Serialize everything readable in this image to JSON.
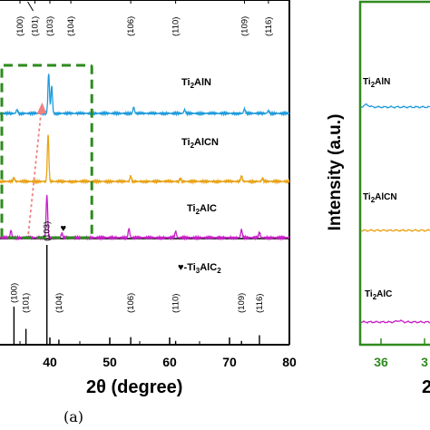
{
  "chart_data": [
    {
      "type": "line",
      "panel_caption": "(a)",
      "xlabel": "2θ (degree)",
      "xlim": [
        30,
        80
      ],
      "xticks": [
        40,
        50,
        60,
        70,
        80
      ],
      "series": [
        {
          "name": "Ti2AlN",
          "label_main": "Ti",
          "label_sub": "2",
          "label_rest": "AlN",
          "color": "#1f9bdc",
          "peaks": [
            {
              "x": 34.5,
              "h": 4
            },
            {
              "x": 39.8,
              "h": 44
            },
            {
              "x": 40.3,
              "h": 30
            },
            {
              "x": 54.0,
              "h": 7
            },
            {
              "x": 62.5,
              "h": 4
            },
            {
              "x": 72.5,
              "h": 5
            },
            {
              "x": 76.5,
              "h": 3
            }
          ]
        },
        {
          "name": "Ti2AlCN",
          "label_main": "Ti",
          "label_sub": "2",
          "label_rest": "AlCN",
          "color": "#e8a317",
          "peaks": [
            {
              "x": 34.0,
              "h": 4
            },
            {
              "x": 39.7,
              "h": 52
            },
            {
              "x": 53.5,
              "h": 6
            },
            {
              "x": 61.8,
              "h": 3
            },
            {
              "x": 72.0,
              "h": 6
            },
            {
              "x": 75.5,
              "h": 3
            }
          ]
        },
        {
          "name": "Ti2AlC",
          "label_main": "Ti",
          "label_sub": "2",
          "label_rest": "AlC",
          "color": "#c81ec8",
          "peaks": [
            {
              "x": 33.5,
              "h": 8
            },
            {
              "x": 39.5,
              "h": 47
            },
            {
              "x": 42.0,
              "h": 5
            },
            {
              "x": 53.2,
              "h": 10
            },
            {
              "x": 61.0,
              "h": 7
            },
            {
              "x": 72.0,
              "h": 9
            },
            {
              "x": 75.0,
              "h": 6
            }
          ]
        }
      ],
      "reference": {
        "label_prefix": "♥-Ti",
        "label_sub1": "3",
        "label_mid": "AlC",
        "label_sub2": "2",
        "sticks": [
          {
            "x": 34.0,
            "h": 60,
            "hkl": "(100)"
          },
          {
            "x": 36.0,
            "h": 25,
            "hkl": "(101)"
          },
          {
            "x": 39.5,
            "h": 200,
            "hkl": "(103)"
          },
          {
            "x": 41.5,
            "h": 8,
            "hkl": "(104)"
          },
          {
            "x": 53.5,
            "h": 12,
            "hkl": "(106)"
          },
          {
            "x": 61.0,
            "h": 6,
            "hkl": "(110)"
          },
          {
            "x": 72.0,
            "h": 6,
            "hkl": "(109)"
          },
          {
            "x": 75.0,
            "h": 15,
            "hkl": "(116)"
          }
        ]
      },
      "top_hkl_labels": [
        {
          "x": 35.0,
          "hkl": "(100)"
        },
        {
          "x": 37.5,
          "hkl": "(101)"
        },
        {
          "x": 40.0,
          "hkl": "(103)"
        },
        {
          "x": 43.5,
          "hkl": "(104)"
        },
        {
          "x": 53.5,
          "hkl": "(106)"
        },
        {
          "x": 61.0,
          "hkl": "(110)"
        },
        {
          "x": 72.5,
          "hkl": "(109)"
        },
        {
          "x": 76.5,
          "hkl": "(116)"
        }
      ],
      "marker_symbol": "♥",
      "marker_x": 42.5,
      "zoom_box": {
        "x0": 30,
        "x1": 47,
        "color": "#2e8b1e"
      },
      "shift_arrow_color": "#f08080"
    },
    {
      "type": "line",
      "ylabel": "Intensity (a.u.)",
      "xlabel_partial": "2",
      "tick_labels": [
        "36",
        "3"
      ],
      "frame_color": "#2e8b1e",
      "series": [
        {
          "name": "Ti2AlN",
          "label_main": "Ti",
          "label_sub": "2",
          "label_rest": "AlN",
          "color": "#1f9bdc"
        },
        {
          "name": "Ti2AlCN",
          "label_main": "Ti",
          "label_sub": "2",
          "label_rest": "AlCN",
          "color": "#e8a317"
        },
        {
          "name": "Ti2AlC",
          "label_main": "Ti",
          "label_sub": "2",
          "label_rest": "AlC",
          "color": "#c81ec8"
        }
      ]
    }
  ]
}
